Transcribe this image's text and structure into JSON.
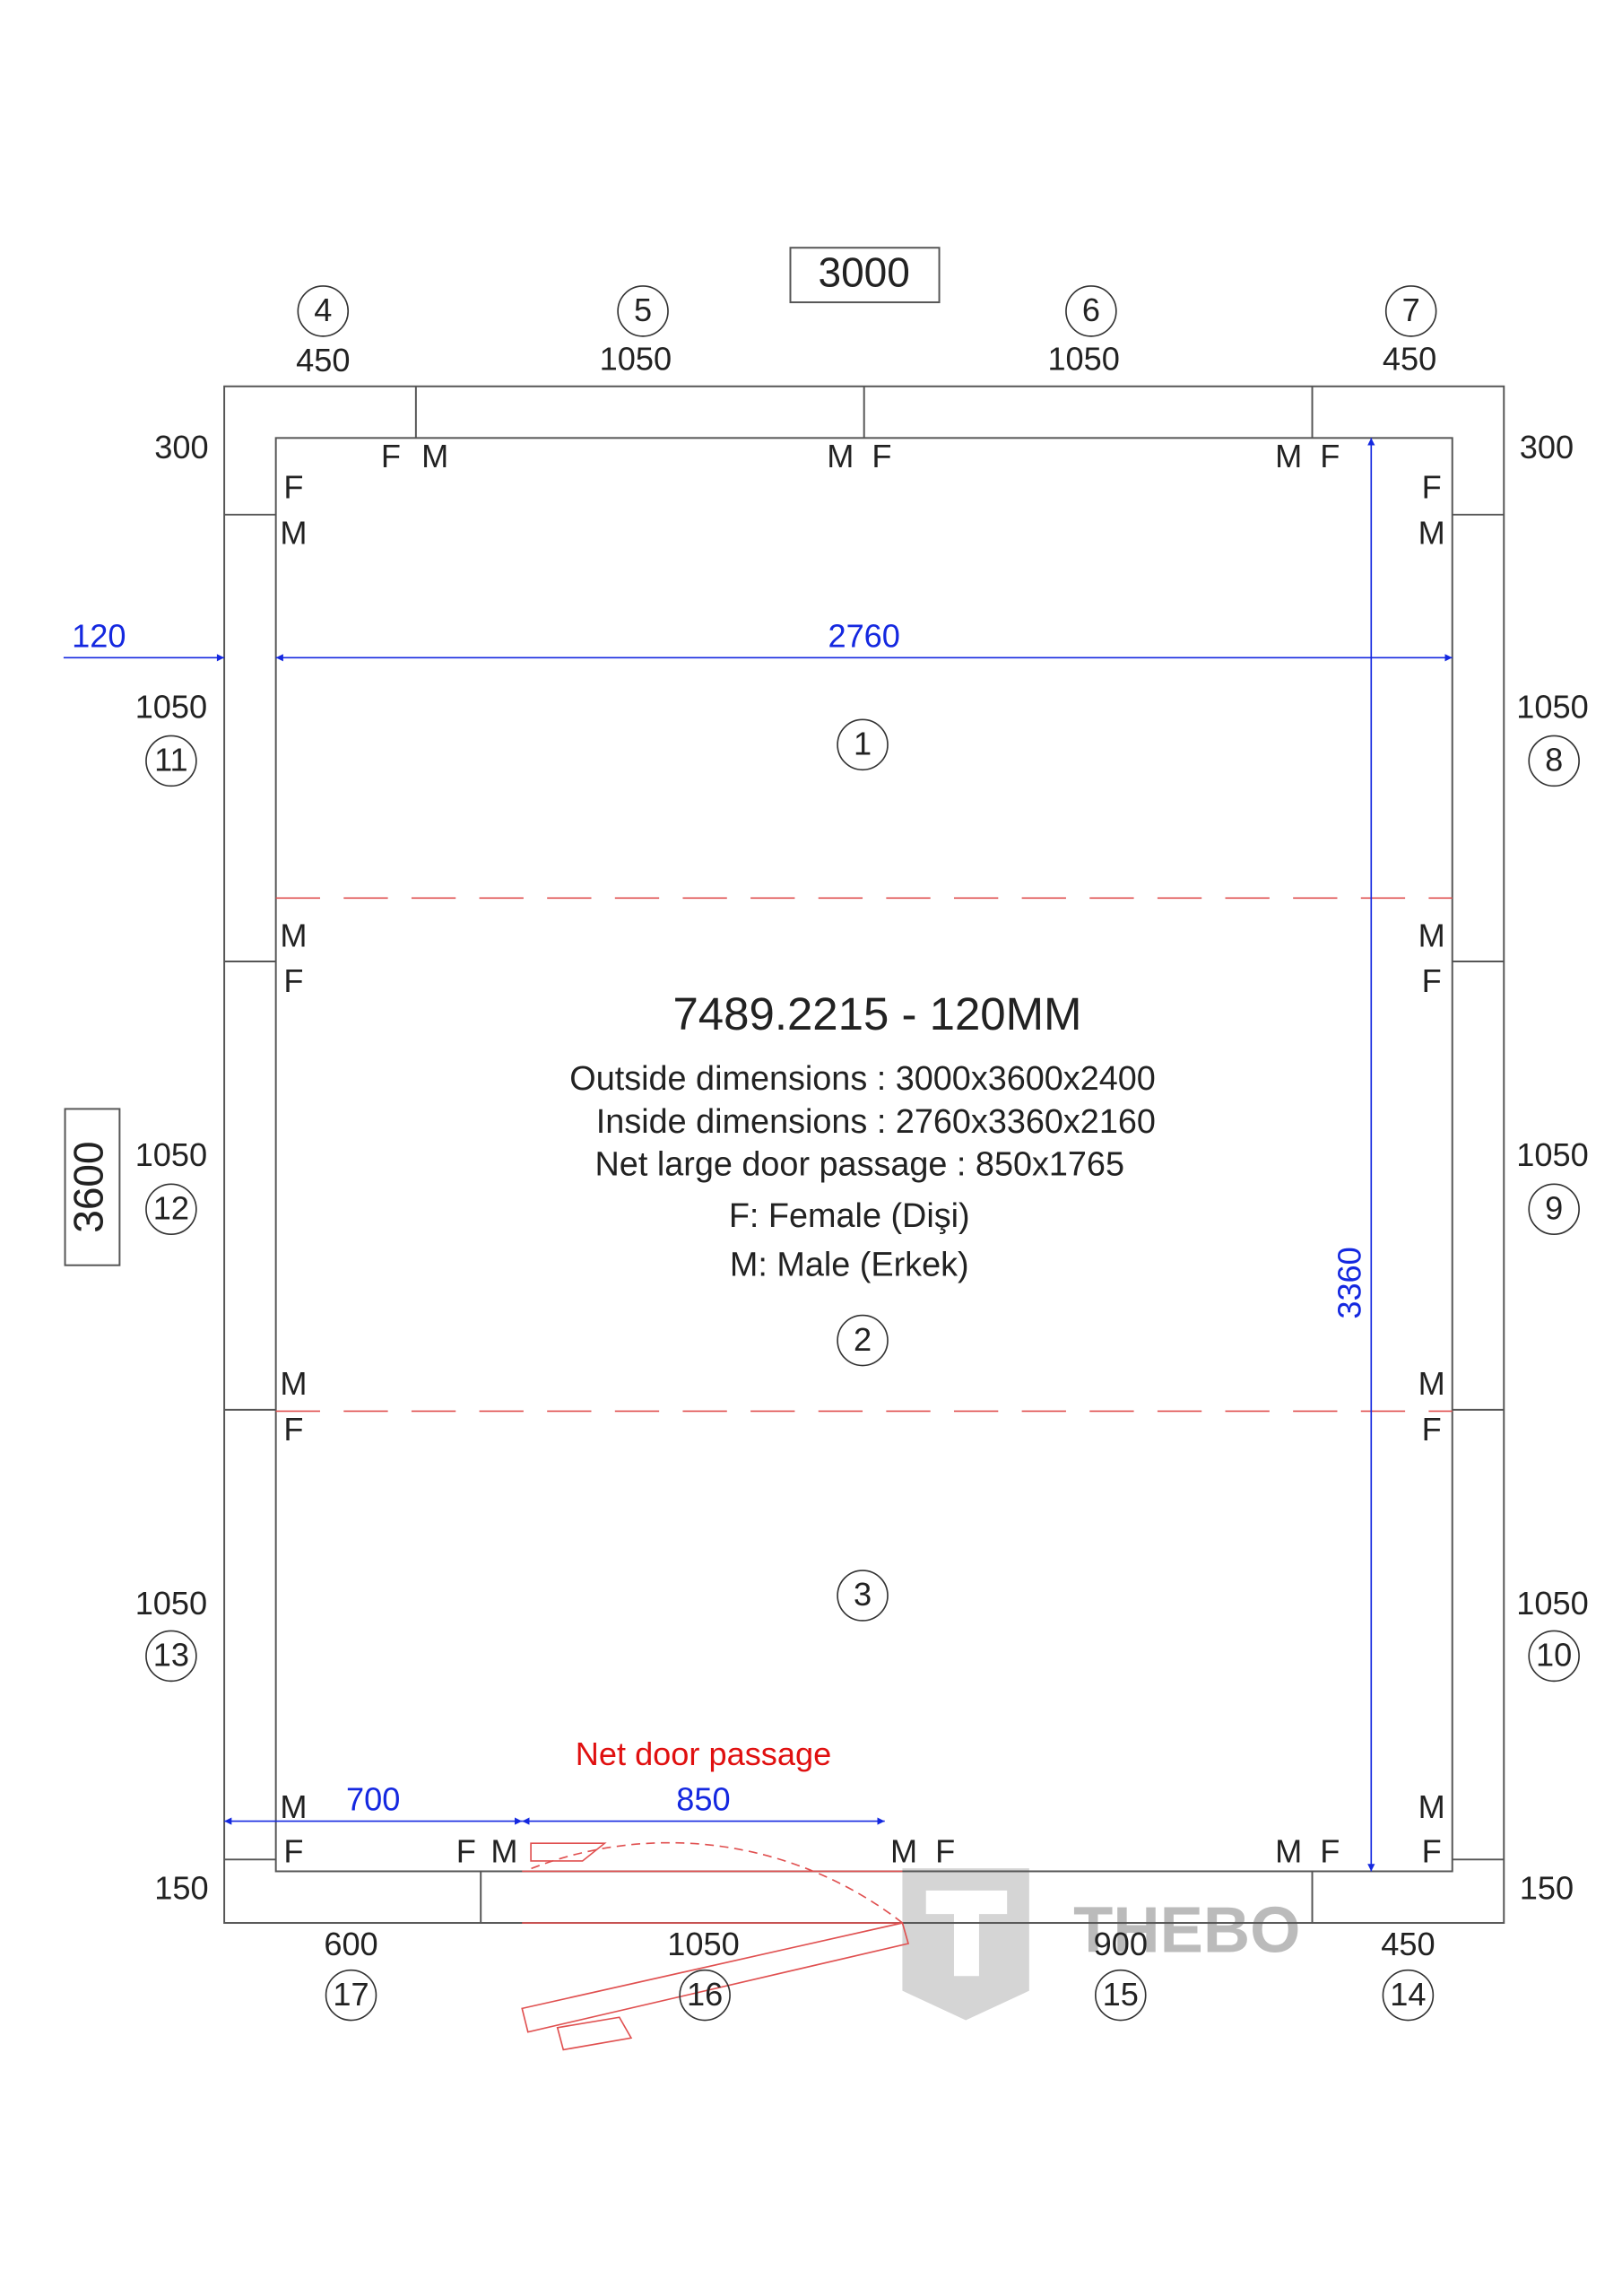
{
  "title_box": "3000",
  "side_box": "3600",
  "wall_panels": [
    {
      "number": "4",
      "width": "450"
    },
    {
      "number": "5",
      "width": "1050"
    },
    {
      "number": "6",
      "width": "1050"
    },
    {
      "number": "7",
      "width": "450"
    },
    {
      "number": "8",
      "width": "1050"
    },
    {
      "number": "9",
      "width": "1050"
    },
    {
      "number": "10",
      "width": "1050"
    },
    {
      "number": "11",
      "width": "1050"
    },
    {
      "number": "12",
      "width": "1050"
    },
    {
      "number": "13",
      "width": "1050"
    },
    {
      "number": "14",
      "width": "450"
    },
    {
      "number": "15",
      "width": "900"
    },
    {
      "number": "16",
      "width": "1050"
    },
    {
      "number": "17",
      "width": "600"
    }
  ],
  "corner_labels": [
    "300",
    "300",
    "150",
    "150"
  ],
  "floor_panels": [
    "1",
    "2",
    "3"
  ],
  "connectors": [
    "F",
    "M",
    "M",
    "F",
    "M",
    "F",
    "F",
    "M",
    "F",
    "M",
    "M",
    "F",
    "M",
    "F",
    "M",
    "F",
    "M",
    "F",
    "M",
    "F",
    "M",
    "F",
    "F",
    "M",
    "M",
    "F",
    "M",
    "F"
  ],
  "dimensions": {
    "wall": "120",
    "inner_width": "2760",
    "inner_depth": "3360",
    "door_offset": "700",
    "door_width": "850",
    "door_label": "Net door passage"
  },
  "info": {
    "model": "7489.2215 - 120MM",
    "lines": [
      "Outside dimensions : 3000x3600x2400",
      "Inside dimensions : 2760x3360x2160",
      "Net large door passage : 850x1765",
      "F: Female (Dişi)",
      "M: Male (Erkek)"
    ]
  },
  "logo": "THEBO"
}
